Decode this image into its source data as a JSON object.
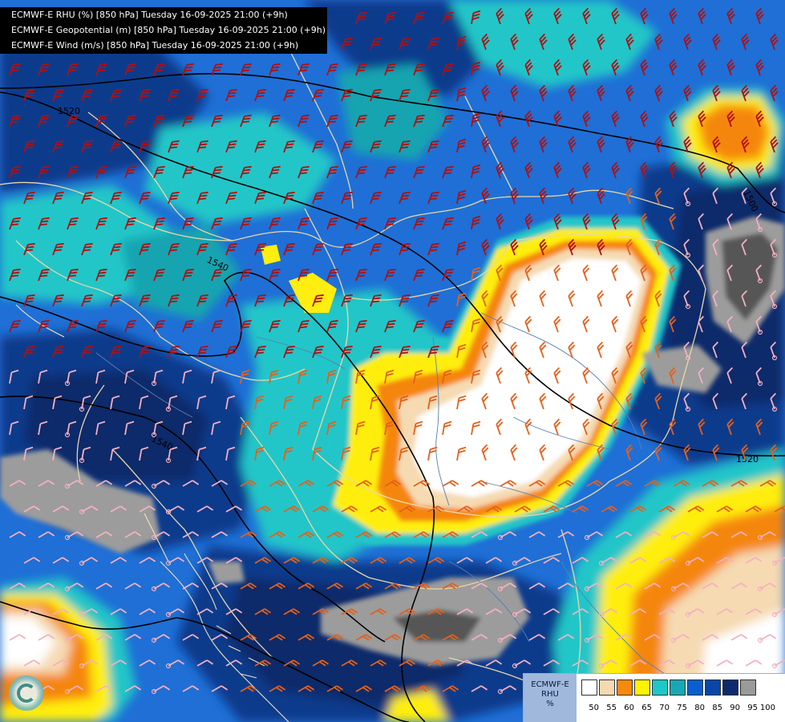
{
  "header": {
    "lines": [
      "ECMWF-E RHU (%) [850 hPa] Tuesday 16-09-2025 21:00 (+9h)",
      "ECMWF-E Geopotential (m) [850 hPa] Tuesday 16-09-2025 21:00 (+9h)",
      "ECMWF-E Wind (m/s) [850 hPa] Tuesday 16-09-2025 21:00 (+9h)"
    ]
  },
  "contours": {
    "labels": [
      "1520",
      "1540",
      "1540",
      "1520",
      "1500"
    ],
    "color": "#000000"
  },
  "legend": {
    "model": "ECMWF-E",
    "variable": "RHU",
    "unit": "%",
    "ticks": [
      "50",
      "55",
      "60",
      "65",
      "70",
      "75",
      "80",
      "85",
      "90",
      "95",
      "100"
    ],
    "colors": [
      "#ffffff",
      "#f5d9b0",
      "#f58a0c",
      "#fff200",
      "#1ec8c8",
      "#18a8b4",
      "#0a5fd0",
      "#0a46a8",
      "#0c2a6e",
      "#9a9a9a",
      "#585858"
    ]
  },
  "palette": {
    "sea_blue": "#1f6fd6",
    "deep_blue": "#0b3a8c",
    "navy": "#0a2a6a",
    "cyan": "#22c6c8",
    "teal": "#17a4b0",
    "yellow": "#ffee10",
    "orange": "#f5860a",
    "beige": "#f5dab2",
    "white": "#ffffff",
    "gray": "#9c9c9c",
    "dark_gray": "#575757",
    "border_tan": "#e8d7a8",
    "river": "#5a7fb0",
    "barb_red": "#b01010",
    "barb_orange": "#e5601a",
    "barb_pink": "#f5b0c0"
  }
}
